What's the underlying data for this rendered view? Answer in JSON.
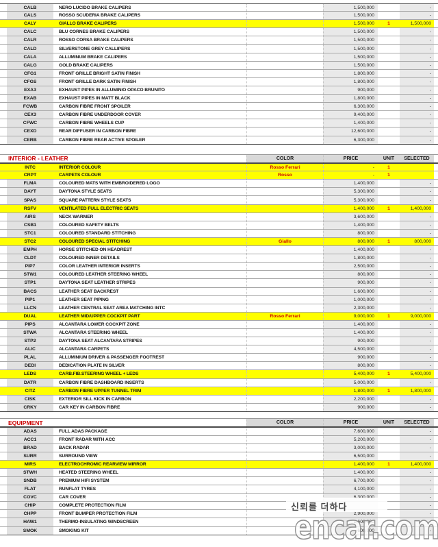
{
  "colors": {
    "highlight_row": "#ffff00",
    "section_title_red": "#cc0000",
    "unit_red": "#e00000",
    "cell_gray": "#e9e9e9"
  },
  "columns": {
    "color": "COLOR",
    "price": "PRICE",
    "unit": "UNIT",
    "selected": "SELECTED"
  },
  "sections": [
    {
      "title": "",
      "rows": [
        {
          "code": "CALB",
          "desc": "NERO LUCIDO BRAKE CALIPERS",
          "color": "",
          "price": "1,500,000",
          "unit": "",
          "sel": "-",
          "hl": false
        },
        {
          "code": "CALS",
          "desc": "ROSSO SCUDERIA BRAKE CALIPERS",
          "color": "",
          "price": "1,500,000",
          "unit": "",
          "sel": "-",
          "hl": false
        },
        {
          "code": "CALY",
          "desc": "GIALLO BRAKE CALIPERS",
          "color": "",
          "price": "1,500,000",
          "unit": "1",
          "sel": "1,500,000",
          "hl": true
        },
        {
          "code": "CALC",
          "desc": "BLU CORNES BRAKE CALIPERS",
          "color": "",
          "price": "1,500,000",
          "unit": "",
          "sel": "-",
          "hl": false
        },
        {
          "code": "CALR",
          "desc": "ROSSO CORSA BRAKE CALIPERS",
          "color": "",
          "price": "1,500,000",
          "unit": "",
          "sel": "-",
          "hl": false
        },
        {
          "code": "CALD",
          "desc": "SILVERSTONE GREY CALLIPERS",
          "color": "",
          "price": "1,500,000",
          "unit": "",
          "sel": "-",
          "hl": false
        },
        {
          "code": "CALA",
          "desc": "ALLUMINUM BRAKE CALIPERS",
          "color": "",
          "price": "1,500,000",
          "unit": "",
          "sel": "-",
          "hl": false
        },
        {
          "code": "CALG",
          "desc": "GOLD BRAKE CALIPERS",
          "color": "",
          "price": "1,500,000",
          "unit": "",
          "sel": "-",
          "hl": false
        },
        {
          "code": "CFG1",
          "desc": "FRONT GRILLE BRIGHT SATIN FINISH",
          "color": "",
          "price": "1,800,000",
          "unit": "",
          "sel": "-",
          "hl": false
        },
        {
          "code": "CFGS",
          "desc": "FRONT GRILLE DARK SATIN FINISH",
          "color": "",
          "price": "1,800,000",
          "unit": "",
          "sel": "-",
          "hl": false
        },
        {
          "code": "EXA3",
          "desc": "EXHAUST PIPES IN ALLUMINIO OPACO BRUNITO",
          "color": "",
          "price": "900,000",
          "unit": "",
          "sel": "-",
          "hl": false
        },
        {
          "code": "EXAB",
          "desc": "EXHAUST PIPES IN MATT BLACK",
          "color": "",
          "price": "1,800,000",
          "unit": "",
          "sel": "-",
          "hl": false
        },
        {
          "code": "FCWB",
          "desc": "CARBON FIBRE FRONT SPOILER",
          "color": "",
          "price": "6,300,000",
          "unit": "",
          "sel": "-",
          "hl": false
        },
        {
          "code": "CEX3",
          "desc": "CARBON FIBRE UNDERDOOR COVER",
          "color": "",
          "price": "9,400,000",
          "unit": "",
          "sel": "-",
          "hl": false
        },
        {
          "code": "CFWC",
          "desc": "CARBON FIBRE WHEELS CUP",
          "color": "",
          "price": "1,400,000",
          "unit": "",
          "sel": "-",
          "hl": false
        },
        {
          "code": "CEXD",
          "desc": "REAR DIFFUSER IN CARBON FIBRE",
          "color": "",
          "price": "12,600,000",
          "unit": "",
          "sel": "-",
          "hl": false
        },
        {
          "code": "CERB",
          "desc": "CARBON FIBRE REAR ACTIVE SPOILER",
          "color": "",
          "price": "6,300,000",
          "unit": "",
          "sel": "-",
          "hl": false
        }
      ]
    },
    {
      "title": "INTERIOR - LEATHER",
      "rows": [
        {
          "code": "INTC",
          "desc": "INTERIOR COLOUR",
          "color": "Rosso Ferrari",
          "price": "-",
          "unit": "1",
          "sel": "",
          "hl": true
        },
        {
          "code": "CRPT",
          "desc": "CARPETS COLOUR",
          "color": "Rosso",
          "price": "-",
          "unit": "1",
          "sel": "",
          "hl": true
        },
        {
          "code": "FLMA",
          "desc": "COLOURED MATS WITH EMBROIDERED LOGO",
          "color": "",
          "price": "1,400,000",
          "unit": "",
          "sel": "-",
          "hl": false
        },
        {
          "code": "DAYT",
          "desc": "DAYTONA STYLE SEATS",
          "color": "",
          "price": "5,300,000",
          "unit": "",
          "sel": "-",
          "hl": false
        },
        {
          "code": "SPAS",
          "desc": "SQUARE PATTERN STYLE SEATS",
          "color": "",
          "price": "5,300,000",
          "unit": "",
          "sel": "-",
          "hl": false
        },
        {
          "code": "RSFV",
          "desc": "VENTILATED FULL ELECTRIC SEATS",
          "color": "",
          "price": "1,400,000",
          "unit": "1",
          "sel": "1,400,000",
          "hl": true
        },
        {
          "code": "AIRS",
          "desc": "NECK WARMER",
          "color": "",
          "price": "3,600,000",
          "unit": "",
          "sel": "-",
          "hl": false
        },
        {
          "code": "CSB1",
          "desc": "COLOURED SAFETY BELTS",
          "color": "",
          "price": "1,400,000",
          "unit": "",
          "sel": "-",
          "hl": false
        },
        {
          "code": "STC1",
          "desc": "COLOURED STANDARD STITCHING",
          "color": "",
          "price": "800,000",
          "unit": "",
          "sel": "-",
          "hl": false
        },
        {
          "code": "STC2",
          "desc": "COLOURED SPECIAL STITCHING",
          "color": "Giallo",
          "price": "800,000",
          "unit": "1",
          "sel": "800,000",
          "hl": true
        },
        {
          "code": "EMPH",
          "desc": "HORSE STITCHED ON HEADREST",
          "color": "",
          "price": "1,400,000",
          "unit": "",
          "sel": "-",
          "hl": false
        },
        {
          "code": "CLDT",
          "desc": "COLOURED INNER DETAILS",
          "color": "",
          "price": "1,800,000",
          "unit": "",
          "sel": "-",
          "hl": false
        },
        {
          "code": "PIP7",
          "desc": "COLOR LEATHER INTERIOR INSERTS",
          "color": "",
          "price": "2,500,000",
          "unit": "",
          "sel": "-",
          "hl": false
        },
        {
          "code": "STW1",
          "desc": "COLOURED LEATHER STEERING WHEEL",
          "color": "",
          "price": "800,000",
          "unit": "",
          "sel": "-",
          "hl": false
        },
        {
          "code": "STP1",
          "desc": "DAYTONA SEAT LEATHER STRIPES",
          "color": "",
          "price": "900,000",
          "unit": "",
          "sel": "-",
          "hl": false
        },
        {
          "code": "BACS",
          "desc": "LEATHER SEAT BACKREST",
          "color": "",
          "price": "1,600,000",
          "unit": "",
          "sel": "-",
          "hl": false
        },
        {
          "code": "PIP1",
          "desc": "LEATHER SEAT PIPING",
          "color": "",
          "price": "1,000,000",
          "unit": "",
          "sel": "-",
          "hl": false
        },
        {
          "code": "LLCN",
          "desc": "LEATHER CENTRAL SEAT AREA MATCHING INTC",
          "color": "",
          "price": "2,300,000",
          "unit": "",
          "sel": "-",
          "hl": false
        },
        {
          "code": "DUAL",
          "desc": "LEATHER MID/UPPER COCKPIT PART",
          "color": "Rosso Ferrari",
          "price": "9,000,000",
          "unit": "1",
          "sel": "9,000,000",
          "hl": true
        },
        {
          "code": "PIPS",
          "desc": "ALCANTARA LOWER COCKPIT ZONE",
          "color": "",
          "price": "1,400,000",
          "unit": "",
          "sel": "-",
          "hl": false
        },
        {
          "code": "STWA",
          "desc": "ALCANTARA STEERING WHEEL",
          "color": "",
          "price": "1,400,000",
          "unit": "",
          "sel": "-",
          "hl": false
        },
        {
          "code": "STP2",
          "desc": "DAYTONA SEAT ALCANTARA STRIPES",
          "color": "",
          "price": "900,000",
          "unit": "",
          "sel": "-",
          "hl": false
        },
        {
          "code": "ALIC",
          "desc": "ALCANTARA CARPETS",
          "color": "",
          "price": "4,500,000",
          "unit": "",
          "sel": "-",
          "hl": false
        },
        {
          "code": "PLAL",
          "desc": "ALLUMINIUM DRIVER & PASSENGER FOOTREST",
          "color": "",
          "price": "900,000",
          "unit": "",
          "sel": "-",
          "hl": false
        },
        {
          "code": "DEDI",
          "desc": "DEDICATION PLATE IN SILVER",
          "color": "",
          "price": "800,000",
          "unit": "",
          "sel": "-",
          "hl": false
        },
        {
          "code": "LEDS",
          "desc": "CARB.FIB.STEERING WHEEL + LEDS",
          "color": "",
          "price": "5,400,000",
          "unit": "1",
          "sel": "5,400,000",
          "hl": true
        },
        {
          "code": "DATR",
          "desc": "CARBON FIBRE DASHBOARD INSERTS",
          "color": "",
          "price": "5,000,000",
          "unit": "",
          "sel": "-",
          "hl": false
        },
        {
          "code": "CITZ",
          "desc": "CARBON FIBRE UPPER TUNNEL TRIM",
          "color": "",
          "price": "1,800,000",
          "unit": "1",
          "sel": "1,800,000",
          "hl": true
        },
        {
          "code": "CISK",
          "desc": "EXTERIOR SILL KICK IN CARBON",
          "color": "",
          "price": "2,200,000",
          "unit": "",
          "sel": "-",
          "hl": false
        },
        {
          "code": "CRKY",
          "desc": "CAR KEY IN CARBON FIBRE",
          "color": "",
          "price": "900,000",
          "unit": "",
          "sel": "-",
          "hl": false
        }
      ]
    },
    {
      "title": "EQUIPMENT",
      "rows": [
        {
          "code": "ADAS",
          "desc": "FULL ADAS PACKAGE",
          "color": "",
          "price": "7,600,000",
          "unit": "",
          "sel": "-",
          "hl": false
        },
        {
          "code": "ACC1",
          "desc": "FRONT RADAR WITH ACC",
          "color": "",
          "price": "5,200,000",
          "unit": "",
          "sel": "-",
          "hl": false
        },
        {
          "code": "BRAD",
          "desc": "BACK RADAR",
          "color": "",
          "price": "3,000,000",
          "unit": "",
          "sel": "-",
          "hl": false
        },
        {
          "code": "SURR",
          "desc": "SURROUND VIEW",
          "color": "",
          "price": "6,500,000",
          "unit": "",
          "sel": "-",
          "hl": false
        },
        {
          "code": "MIRS",
          "desc": "ELECTROCHROMIC REARVIEW MIRROR",
          "color": "",
          "price": "1,400,000",
          "unit": "1",
          "sel": "1,400,000",
          "hl": true
        },
        {
          "code": "STWH",
          "desc": "HEATED STEERING WHEEL",
          "color": "",
          "price": "1,400,000",
          "unit": "",
          "sel": "-",
          "hl": false
        },
        {
          "code": "SNDB",
          "desc": "PREMIUM HIFI SYSTEM",
          "color": "",
          "price": "6,700,000",
          "unit": "",
          "sel": "-",
          "hl": false
        },
        {
          "code": "FLAT",
          "desc": "RUNFLAT TYRES",
          "color": "",
          "price": "4,100,000",
          "unit": "",
          "sel": "-",
          "hl": false
        },
        {
          "code": "COVC",
          "desc": "CAR COVER",
          "color": "",
          "price": "6,300,000",
          "unit": "",
          "sel": "-",
          "hl": false
        },
        {
          "code": "CHIP",
          "desc": "COMPLETE PROTECTION FILM",
          "color": "",
          "price": "",
          "unit": "",
          "sel": "-",
          "hl": false
        },
        {
          "code": "CHPP",
          "desc": "FRONT BUMPER PROTECTION FILM",
          "color": "",
          "price": "2,900,000",
          "unit": "",
          "sel": "-",
          "hl": false
        },
        {
          "code": "HAW1",
          "desc": "THERMO-INSULATING WINDSCREEN",
          "color": "",
          "price": "1,600,000",
          "unit": "",
          "sel": "-",
          "hl": false
        },
        {
          "code": "SMOK",
          "desc": "SMOKING KIT",
          "color": "",
          "price": "600,000",
          "unit": "",
          "sel": "-",
          "hl": false
        }
      ]
    }
  ],
  "watermark": {
    "slogan": "신뢰를 더하다",
    "brand": "encar.com"
  }
}
